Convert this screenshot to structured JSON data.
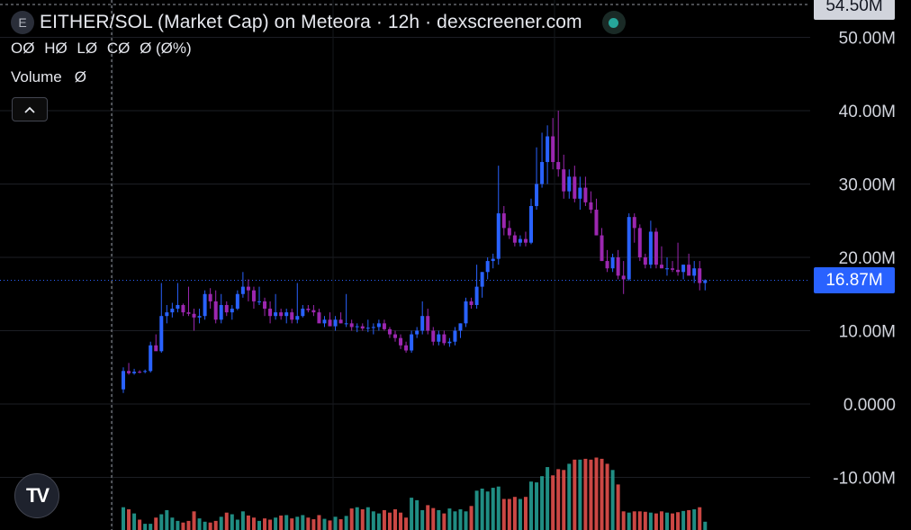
{
  "header": {
    "symbol_icon": "E",
    "title": "EITHER/SOL (Market Cap) on Meteora · 12h · dexscreener.com",
    "status_color": "#26a69a"
  },
  "legend": {
    "o": "OØ",
    "h": "HØ",
    "l": "LØ",
    "c": "CØ",
    "change": "Ø (Ø%)",
    "volume_label": "Volume",
    "volume_value": "Ø",
    "collapse_icon": "chevron-up-icon"
  },
  "axis": {
    "top_value": "54.50M",
    "ticks": [
      "50.00M",
      "40.00M",
      "30.00M",
      "20.00M",
      "10.00M",
      "0.0000",
      "-10.00M"
    ],
    "current_price": "16.87M"
  },
  "logo": "TV",
  "colors": {
    "up": "#2962ff",
    "down": "#9c27b0",
    "vol_up": "#26a69a",
    "vol_down": "#ef5350",
    "price_line": "#2962ff"
  },
  "chart_data": {
    "type": "candlestick",
    "title": "EITHER/SOL (Market Cap) on Meteora · 12h · dexscreener.com",
    "ylim": [
      -14,
      54.5
    ],
    "current_value": 16.87,
    "candles_ohlc_millions": [
      [
        2.0,
        5.0,
        1.5,
        4.5
      ],
      [
        4.5,
        5.6,
        4.0,
        4.2
      ],
      [
        4.2,
        4.8,
        4.0,
        4.4
      ],
      [
        4.4,
        4.6,
        4.2,
        4.3
      ],
      [
        4.4,
        4.7,
        4.2,
        4.5
      ],
      [
        4.5,
        8.5,
        4.3,
        8.0
      ],
      [
        8.0,
        9.5,
        7.5,
        7.2
      ],
      [
        7.2,
        16.5,
        7.0,
        12.0
      ],
      [
        12.0,
        13.5,
        11.0,
        12.5
      ],
      [
        12.5,
        13.8,
        11.8,
        13.0
      ],
      [
        13.0,
        16.5,
        12.5,
        13.5
      ],
      [
        13.5,
        13.7,
        12.0,
        12.5
      ],
      [
        12.5,
        16.0,
        12.0,
        12.3
      ],
      [
        12.3,
        13.0,
        10.0,
        11.8
      ],
      [
        11.8,
        13.0,
        11.0,
        12.0
      ],
      [
        12.0,
        15.5,
        11.5,
        15.0
      ],
      [
        15.0,
        15.8,
        13.0,
        14.0
      ],
      [
        14.0,
        15.5,
        11.0,
        11.5
      ],
      [
        11.5,
        15.0,
        11.0,
        13.5
      ],
      [
        13.5,
        14.0,
        12.0,
        12.5
      ],
      [
        12.5,
        13.5,
        11.5,
        13.0
      ],
      [
        13.0,
        15.5,
        12.8,
        15.0
      ],
      [
        15.0,
        18.0,
        14.5,
        16.0
      ],
      [
        16.0,
        17.0,
        14.0,
        15.5
      ],
      [
        15.5,
        16.0,
        13.0,
        14.0
      ],
      [
        14.0,
        16.0,
        13.5,
        14.0
      ],
      [
        14.0,
        14.5,
        12.0,
        13.0
      ],
      [
        13.0,
        14.0,
        11.0,
        12.0
      ],
      [
        12.0,
        15.0,
        11.5,
        12.5
      ],
      [
        12.5,
        13.0,
        11.5,
        12.0
      ],
      [
        12.0,
        13.0,
        11.0,
        12.5
      ],
      [
        12.5,
        13.0,
        11.0,
        11.5
      ],
      [
        11.5,
        16.5,
        11.0,
        12.0
      ],
      [
        12.0,
        13.5,
        11.8,
        13.0
      ],
      [
        13.0,
        13.5,
        12.5,
        12.8
      ],
      [
        12.8,
        13.5,
        12.0,
        12.5
      ],
      [
        12.5,
        13.0,
        11.5,
        11.0
      ],
      [
        11.0,
        12.0,
        10.5,
        11.5
      ],
      [
        11.5,
        12.5,
        10.8,
        10.6
      ],
      [
        10.6,
        12.0,
        10.0,
        11.5
      ],
      [
        11.5,
        12.5,
        11.0,
        11.0
      ],
      [
        11.0,
        15.0,
        10.5,
        11.0
      ],
      [
        11.0,
        11.5,
        10.0,
        10.5
      ],
      [
        10.5,
        11.0,
        9.8,
        10.6
      ],
      [
        10.6,
        11.0,
        10.0,
        10.3
      ],
      [
        10.3,
        11.5,
        9.8,
        10.4
      ],
      [
        10.4,
        11.0,
        9.5,
        10.5
      ],
      [
        10.5,
        11.5,
        10.0,
        11.0
      ],
      [
        11.0,
        11.5,
        10.0,
        10.2
      ],
      [
        10.2,
        10.5,
        9.0,
        9.5
      ],
      [
        9.5,
        10.0,
        8.5,
        9.0
      ],
      [
        9.0,
        9.5,
        7.5,
        8.0
      ],
      [
        8.0,
        8.5,
        7.0,
        7.3
      ],
      [
        7.3,
        10.0,
        7.0,
        9.5
      ],
      [
        9.5,
        10.5,
        9.0,
        10.0
      ],
      [
        10.0,
        14.0,
        9.5,
        12.0
      ],
      [
        12.0,
        13.0,
        9.5,
        10.0
      ],
      [
        10.0,
        10.5,
        8.0,
        8.5
      ],
      [
        8.5,
        10.0,
        8.0,
        9.5
      ],
      [
        9.5,
        10.0,
        8.0,
        8.3
      ],
      [
        8.3,
        9.0,
        7.8,
        8.5
      ],
      [
        8.5,
        10.5,
        8.0,
        10.0
      ],
      [
        10.0,
        11.0,
        9.0,
        11.0
      ],
      [
        11.0,
        14.5,
        10.5,
        14.0
      ],
      [
        14.0,
        14.5,
        13.0,
        13.5
      ],
      [
        13.5,
        19.0,
        13.0,
        16.0
      ],
      [
        16.0,
        18.0,
        14.5,
        18.0
      ],
      [
        18.0,
        20.0,
        17.0,
        19.5
      ],
      [
        19.5,
        20.5,
        18.5,
        19.8
      ],
      [
        19.8,
        32.5,
        19.0,
        26.0
      ],
      [
        26.0,
        27.0,
        23.0,
        24.0
      ],
      [
        24.0,
        25.0,
        22.5,
        23.0
      ],
      [
        23.0,
        23.5,
        21.5,
        22.0
      ],
      [
        22.0,
        23.0,
        21.5,
        22.5
      ],
      [
        22.5,
        23.5,
        21.5,
        22.0
      ],
      [
        22.0,
        28.0,
        21.8,
        27.0
      ],
      [
        27.0,
        35.0,
        26.5,
        30.0
      ],
      [
        30.0,
        37.0,
        29.5,
        33.0
      ],
      [
        33.0,
        38.0,
        30.0,
        36.5
      ],
      [
        36.5,
        39.0,
        32.0,
        33.0
      ],
      [
        33.0,
        40.0,
        31.0,
        32.0
      ],
      [
        32.0,
        34.0,
        28.0,
        29.0
      ],
      [
        29.0,
        32.0,
        28.0,
        31.0
      ],
      [
        31.0,
        32.5,
        27.5,
        28.0
      ],
      [
        28.0,
        31.0,
        26.5,
        29.5
      ],
      [
        29.5,
        31.0,
        27.0,
        27.5
      ],
      [
        27.5,
        29.0,
        26.0,
        26.5
      ],
      [
        26.5,
        28.0,
        23.0,
        23.0
      ],
      [
        23.0,
        24.0,
        19.5,
        19.5
      ],
      [
        19.5,
        21.0,
        18.0,
        18.5
      ],
      [
        18.5,
        20.5,
        18.0,
        20.0
      ],
      [
        20.0,
        21.0,
        17.0,
        17.5
      ],
      [
        17.5,
        19.5,
        15.0,
        17.0
      ],
      [
        17.0,
        26.0,
        16.8,
        25.5
      ],
      [
        25.5,
        26.0,
        22.0,
        24.0
      ],
      [
        24.0,
        24.5,
        19.5,
        20.0
      ],
      [
        20.0,
        20.5,
        18.5,
        19.0
      ],
      [
        19.0,
        25.0,
        18.5,
        23.5
      ],
      [
        23.5,
        24.0,
        18.5,
        19.0
      ],
      [
        19.0,
        21.5,
        18.5,
        18.5
      ],
      [
        18.5,
        20.0,
        17.5,
        18.5
      ],
      [
        18.5,
        19.5,
        18.0,
        18.3
      ],
      [
        18.3,
        22.0,
        17.5,
        18.0
      ],
      [
        18.0,
        19.0,
        17.0,
        19.0
      ],
      [
        19.0,
        20.5,
        18.5,
        17.5
      ],
      [
        17.5,
        19.5,
        16.5,
        18.5
      ],
      [
        18.5,
        19.5,
        15.5,
        16.5
      ],
      [
        16.5,
        17.0,
        15.5,
        16.87
      ]
    ],
    "volume_relative": [
      0.55,
      0.5,
      0.4,
      0.25,
      0.15,
      0.15,
      0.3,
      0.38,
      0.48,
      0.3,
      0.22,
      0.18,
      0.22,
      0.45,
      0.28,
      0.2,
      0.18,
      0.22,
      0.32,
      0.42,
      0.38,
      0.25,
      0.45,
      0.35,
      0.3,
      0.22,
      0.28,
      0.25,
      0.3,
      0.35,
      0.36,
      0.28,
      0.32,
      0.36,
      0.3,
      0.26,
      0.36,
      0.27,
      0.23,
      0.32,
      0.26,
      0.34,
      0.52,
      0.55,
      0.5,
      0.55,
      0.45,
      0.4,
      0.48,
      0.42,
      0.5,
      0.42,
      0.3,
      0.78,
      0.72,
      0.48,
      0.6,
      0.53,
      0.48,
      0.4,
      0.52,
      0.45,
      0.5,
      0.45,
      0.58,
      0.95,
      1.0,
      0.93,
      1.02,
      1.05,
      0.75,
      0.75,
      0.8,
      0.75,
      0.8,
      1.17,
      1.15,
      1.3,
      1.52,
      1.32,
      1.47,
      1.45,
      1.6,
      1.7,
      1.7,
      1.72,
      1.7,
      1.75,
      1.72,
      1.6,
      1.45,
      1.1,
      0.45,
      0.42,
      0.45,
      0.45,
      0.44,
      0.42,
      0.4,
      0.45,
      0.42,
      0.4,
      0.43,
      0.46,
      0.48,
      0.5,
      0.55,
      0.2
    ]
  }
}
